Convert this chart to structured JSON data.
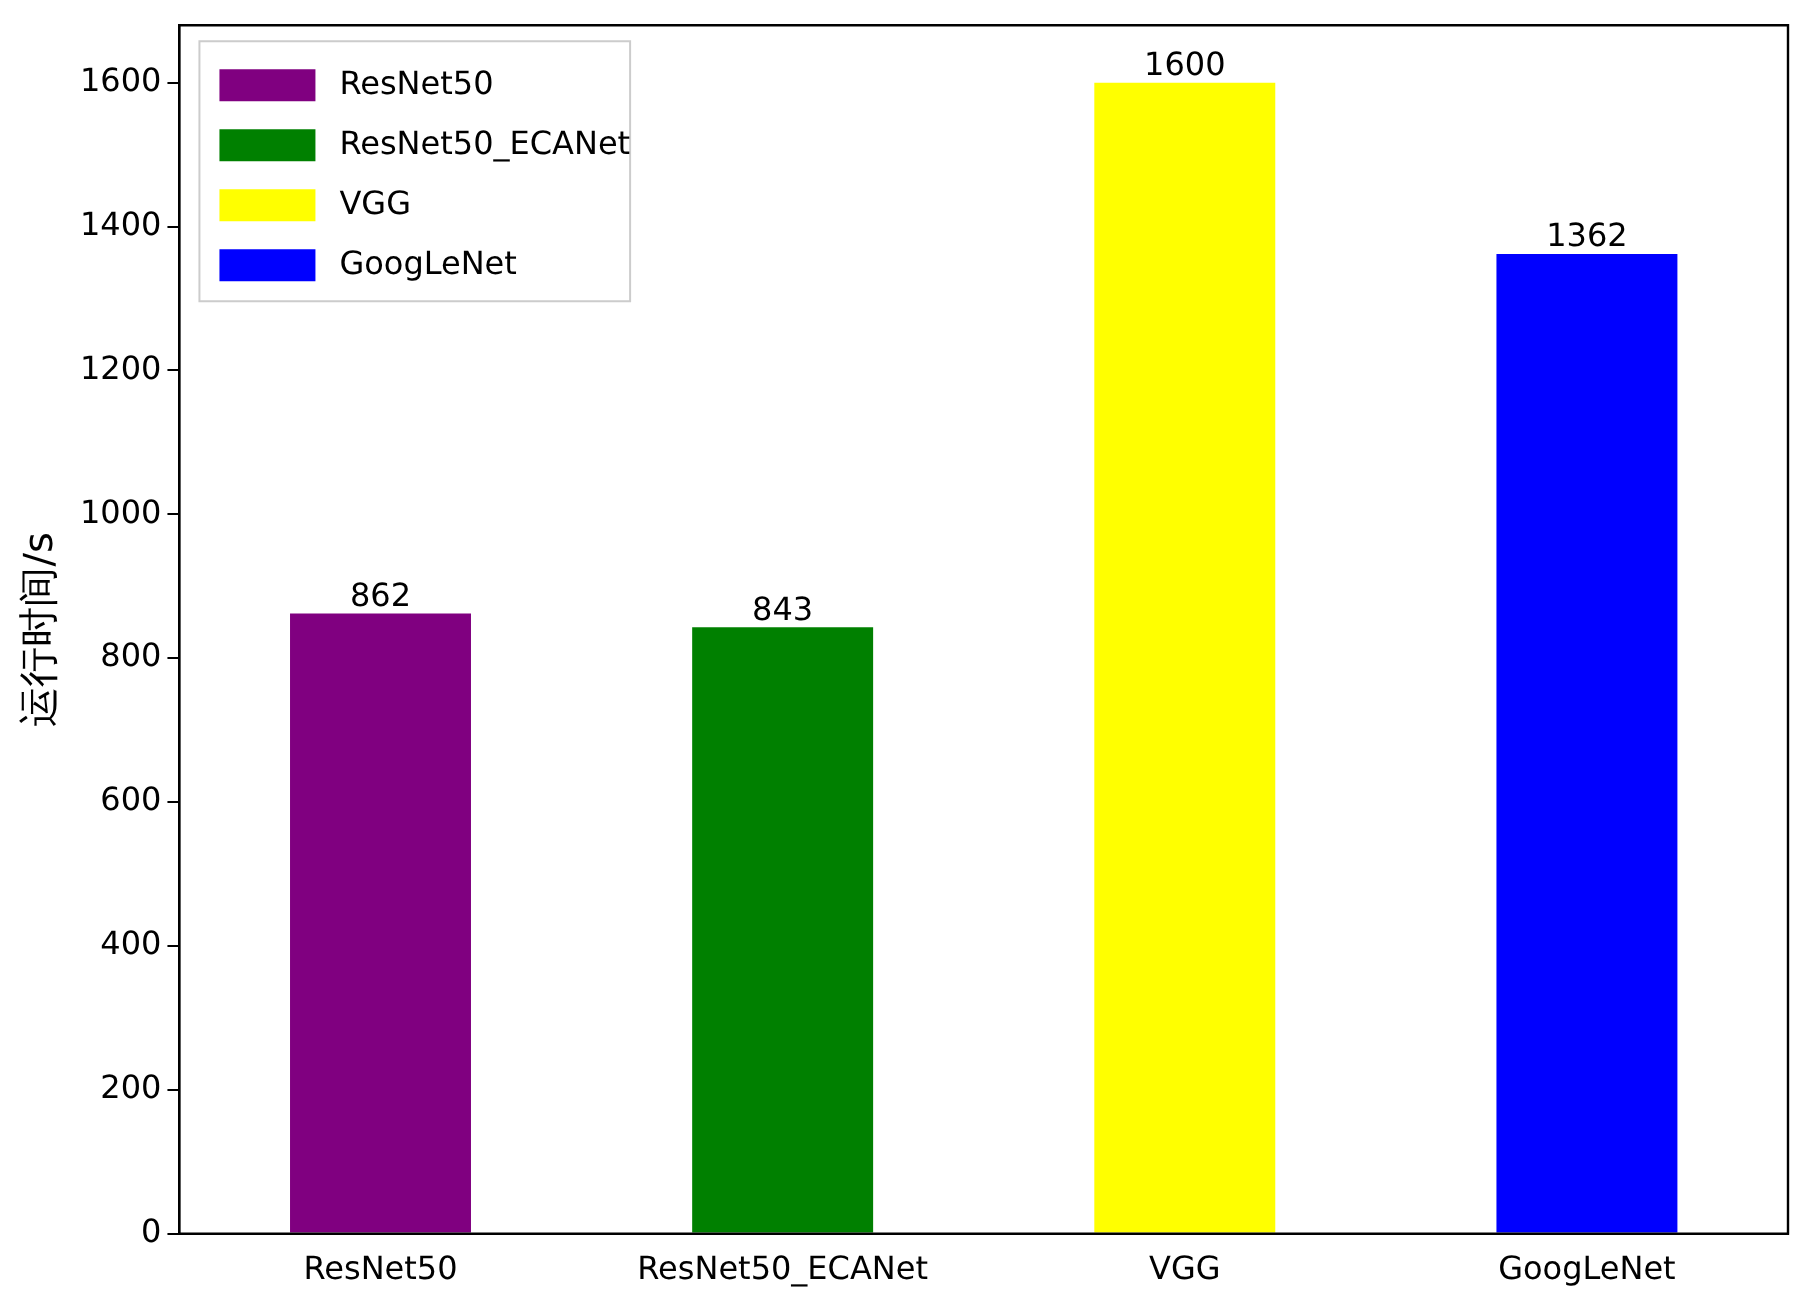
{
  "chart_data": {
    "type": "bar",
    "ylabel": "运行时间/s",
    "categories": [
      "ResNet50",
      "ResNet50_ECANet",
      "VGG",
      "GoogLeNet"
    ],
    "series": [
      {
        "name": "ResNet50",
        "color": "#800080",
        "values": [
          862,
          null,
          null,
          null
        ]
      },
      {
        "name": "ResNet50_ECANet",
        "color": "#008000",
        "values": [
          null,
          843,
          null,
          null
        ]
      },
      {
        "name": "VGG",
        "color": "#ffff00",
        "values": [
          null,
          null,
          1600,
          null
        ]
      },
      {
        "name": "GoogLeNet",
        "color": "#0000ff",
        "values": [
          null,
          null,
          null,
          1362
        ]
      }
    ],
    "ylim": [
      0,
      1680
    ],
    "yticks": [
      0,
      200,
      400,
      600,
      800,
      1000,
      1200,
      1400,
      1600
    ],
    "grid": false,
    "legend": "top left",
    "data_labels": true
  }
}
